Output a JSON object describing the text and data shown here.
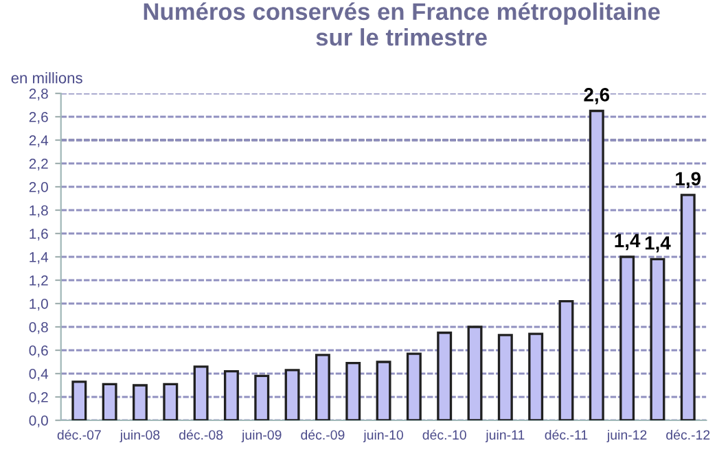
{
  "chart_data": {
    "type": "bar",
    "title": "Numéros conservés en France métropolitaine\nsur le trimestre",
    "ylabel": "en millions",
    "categories": [
      "déc.-07",
      null,
      "juin-08",
      null,
      "déc.-08",
      null,
      "juin-09",
      null,
      "déc.-09",
      null,
      "juin-10",
      null,
      "déc.-10",
      null,
      "juin-11",
      null,
      "déc.-11",
      null,
      "juin-12",
      null,
      "déc.-12"
    ],
    "values": [
      0.33,
      0.31,
      0.3,
      0.31,
      0.46,
      0.42,
      0.38,
      0.43,
      0.56,
      0.49,
      0.5,
      0.57,
      0.75,
      0.8,
      0.73,
      0.74,
      1.02,
      2.65,
      1.4,
      1.38,
      1.93
    ],
    "value_labels": [
      null,
      null,
      null,
      null,
      null,
      null,
      null,
      null,
      null,
      null,
      null,
      null,
      null,
      null,
      null,
      null,
      null,
      "2,6",
      "1,4",
      "1,4",
      "1,9"
    ],
    "color": "#c0c0f4",
    "ylim": [
      0,
      2.8
    ],
    "yticks": [
      {
        "value": 0,
        "label": "0,0"
      },
      {
        "value": 0.2,
        "label": "0,2"
      },
      {
        "value": 0.4,
        "label": "0,4"
      },
      {
        "value": 0.6,
        "label": "0,6"
      },
      {
        "value": 0.8,
        "label": "0,8"
      },
      {
        "value": 1.0,
        "label": "1,0"
      },
      {
        "value": 1.2,
        "label": "1,2"
      },
      {
        "value": 1.4,
        "label": "1,4"
      },
      {
        "value": 1.6,
        "label": "1,6"
      },
      {
        "value": 1.8,
        "label": "1,8"
      },
      {
        "value": 2.0,
        "label": "2,0"
      },
      {
        "value": 2.2,
        "label": "2,2"
      },
      {
        "value": 2.4,
        "label": "2,4"
      },
      {
        "value": 2.6,
        "label": "2,6"
      },
      {
        "value": 2.8,
        "label": "2,8"
      }
    ],
    "ref_lines": [
      {
        "axis": "y",
        "value": 2.4,
        "color": "#202050",
        "line_style": "dashed"
      }
    ],
    "grid": "y"
  }
}
